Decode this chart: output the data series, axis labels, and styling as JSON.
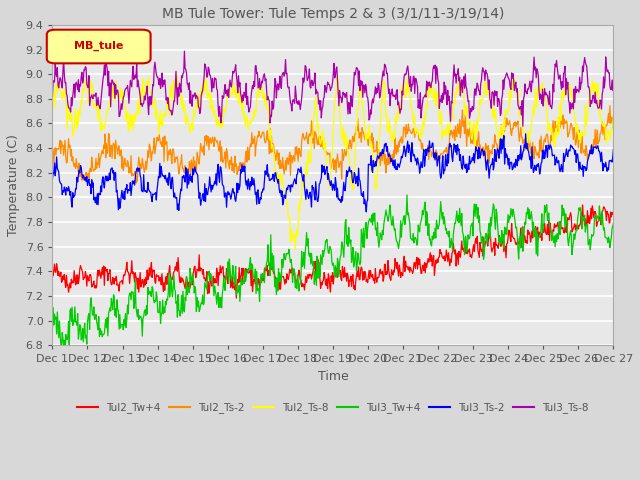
{
  "title": "MB Tule Tower: Tule Temps 2 & 3 (3/1/11-3/19/14)",
  "xlabel": "Time",
  "ylabel": "Temperature (C)",
  "xlim": [
    0,
    16
  ],
  "ylim": [
    6.8,
    9.4
  ],
  "yticks": [
    6.8,
    7.0,
    7.2,
    7.4,
    7.6,
    7.8,
    8.0,
    8.2,
    8.4,
    8.6,
    8.8,
    9.0,
    9.2,
    9.4
  ],
  "xtick_labels": [
    "Dec 1",
    "Dec 12",
    "Dec 13",
    "Dec 14",
    "Dec 15",
    "Dec 16",
    "Dec 17",
    "Dec 18",
    "Dec 19",
    "Dec 20",
    "Dec 21",
    "Dec 22",
    "Dec 23",
    "Dec 24",
    "Dec 25",
    "Dec 26",
    "Dec 27"
  ],
  "xtick_positions": [
    0,
    1,
    2,
    3,
    4,
    5,
    6,
    7,
    8,
    9,
    10,
    11,
    12,
    13,
    14,
    15,
    16
  ],
  "colors": {
    "Tul2_Tw+4": "#ff0000",
    "Tul2_Ts-2": "#ff8c00",
    "Tul2_Ts-8": "#ffff00",
    "Tul3_Tw+4": "#00cc00",
    "Tul3_Ts-2": "#0000ff",
    "Tul3_Ts-8": "#aa00aa"
  },
  "legend_box_color": "#ffff99",
  "legend_box_text": "MB_tule",
  "legend_box_text_color": "#cc0000",
  "background_color": "#d8d8d8",
  "plot_bg_color": "#e8e8e8",
  "grid_color": "#ffffff",
  "title_color": "#555555",
  "label_color": "#555555"
}
